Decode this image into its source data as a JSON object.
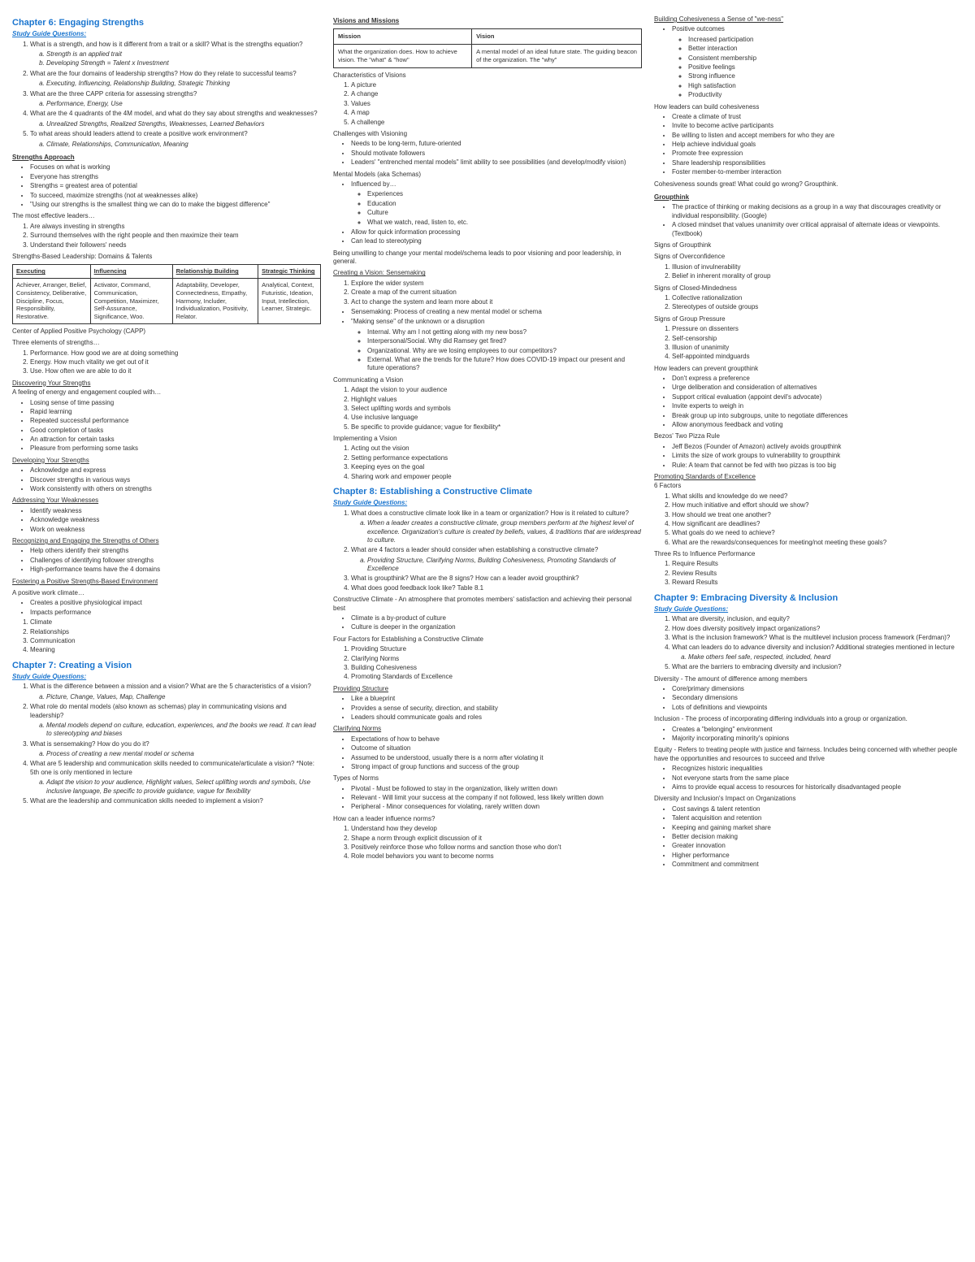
{
  "col1": {
    "ch6": {
      "title": "Chapter 6: Engaging Strengths",
      "sgq": "Study Guide Questions:",
      "q1": "What is a strength, and how is it different from a trait or a skill? What is the strengths equation?",
      "q1a": "Strength is an applied trait",
      "q1b": "Developing Strength = Talent x Investment",
      "q2": "What are the four domains of leadership strengths? How do they relate to successful teams?",
      "q2a": "Executing, Influencing, Relationship Building, Strategic Thinking",
      "q3": "What are the three CAPP criteria for assessing strengths?",
      "q3a": "Performance, Energy, Use",
      "q4": "What are the 4 quadrants of the 4M model, and what do they say about strengths and weaknesses?",
      "q4a": "Unrealized Strengths, Realized Strengths, Weaknesses, Learned Behaviors",
      "q5": "To what areas should leaders attend to create a positive work environment?",
      "q5a": "Climate, Relationships, Communication, Meaning",
      "sa_head": "Strengths Approach",
      "sa1": "Focuses on what is working",
      "sa2": "Everyone has strengths",
      "sa3": "Strengths = greatest area of potential",
      "sa4": "To succeed, maximize strengths (not at weaknesses alike)",
      "sa5": "\"Using our strengths is the smallest thing we can do to make the biggest difference\"",
      "mel_head": "The most effective leaders…",
      "mel1": "Are always investing in strengths",
      "mel2": "Surround themselves with the right people and then maximize their team",
      "mel3": "Understand their followers' needs",
      "tbl_head": "Strengths-Based Leadership: Domains & Talents",
      "th1": "Executing",
      "th2": "Influencing",
      "th3": "Relationship Building",
      "th4": "Strategic Thinking",
      "c1": "Achiever, Arranger, Belief, Consistency, Deliberative, Discipline, Focus, Responsibility, Restorative.",
      "c2": "Activator, Command, Communication, Competition, Maximizer, Self-Assurance, Significance, Woo.",
      "c3": "Adaptability, Developer, Connectedness, Empathy, Harmony, Includer, Individualization, Positivity, Relator.",
      "c4": "Analytical, Context, Futuristic, Ideation, Input, Intellection, Learner, Strategic.",
      "capp_note": "Center of Applied Positive Psychology (CAPP)",
      "te_head": "Three elements of strengths…",
      "te1": "Performance. How good we are at doing something",
      "te2": "Energy. How much vitality we get out of it",
      "te3": "Use. How often we are able to do it",
      "dys_head": "Discovering Your Strengths",
      "dys_sub": "A feeling of energy and engagement coupled with…",
      "dys1": "Losing sense of time passing",
      "dys2": "Rapid learning",
      "dys3": "Repeated successful performance",
      "dys4": "Good completion of tasks",
      "dys5": "An attraction for certain tasks",
      "dys6": "Pleasure from performing some tasks",
      "dev_head": "Developing Your Strengths",
      "dev1": "Acknowledge and express",
      "dev2": "Discover strengths in various ways",
      "dev3": "Work consistently with others on strengths",
      "aw_head": "Addressing Your Weaknesses",
      "aw1": "Identify weakness",
      "aw2": "Acknowledge weakness",
      "aw3": "Work on weakness",
      "reo_head": "Recognizing and Engaging the Strengths of Others",
      "reo1": "Help others identify their strengths",
      "reo2": "Challenges of identifying follower strengths",
      "reo3": "High-performance teams have the 4 domains",
      "fpe_head": "Fostering a Positive Strengths-Based Environment",
      "fpe_sub": "A positive work climate…",
      "fpe1": "Creates a positive physiological impact",
      "fpe2": "Impacts performance",
      "fpe_l1": "Climate",
      "fpe_l2": "Relationships",
      "fpe_l3": "Communication",
      "fpe_l4": "Meaning"
    },
    "ch7": {
      "title": "Chapter 7: Creating a Vision",
      "sgq": "Study Guide Questions:",
      "q1": "What is the difference between a mission and a vision? What are the 5 characteristics of a vision?",
      "q1a": "Picture, Change, Values, Map, Challenge",
      "q2": "What role do mental models (also known as schemas) play in communicating visions and leadership?",
      "q2a": "Mental models depend on culture, education, experiences, and the books we read. It can lead to stereotyping and biases",
      "q3": "What is sensemaking? How do you do it?",
      "q3a": "Process of creating a new mental model or schema",
      "q4": "What are 5 leadership and communication skills needed to communicate/articulate a vision? *Note: 5th one is only mentioned in lecture",
      "q4a": "Adapt the vision to your audience, Highlight values, Select uplifting words and symbols, Use inclusive language, Be specific to provide guidance, vague for flexibility",
      "q5": "What are the leadership and communication skills needed to implement a vision?"
    }
  },
  "col2": {
    "vm_head": "Visions and Missions",
    "th_mission": "Mission",
    "th_vision": "Vision",
    "td_mission": "What the organization does. How to achieve vision. The \"what\" & \"how\"",
    "td_vision": "A mental model of an ideal future state. The guiding beacon of the organization. The \"why\"",
    "cv_head": "Characteristics of Visions",
    "cv1": "A picture",
    "cv2": "A change",
    "cv3": "Values",
    "cv4": "A map",
    "cv5": "A challenge",
    "chv_head": "Challenges with Visioning",
    "chv1": "Needs to be long-term, future-oriented",
    "chv2": "Should motivate followers",
    "chv3": "Leaders' \"entrenched mental models\" limit ability to see possibilities (and develop/modify vision)",
    "mm_head": "Mental Models (aka Schemas)",
    "mm_sub": "Influenced by…",
    "mm1": "Experiences",
    "mm2": "Education",
    "mm3": "Culture",
    "mm4": "What we watch, read, listen to, etc.",
    "mm5": "Allow for quick information processing",
    "mm6": "Can lead to stereotyping",
    "mm_note": "Being unwilling to change your mental model/schema leads to poor visioning and poor leadership, in general.",
    "sense_head": "Creating a Vision: Sensemaking",
    "sm1": "Explore the wider system",
    "sm2": "Create a map of the current situation",
    "sm3": "Act to change the system and learn more about it",
    "sm_note": "Sensemaking: Process of creating a new mental model or schema",
    "mbs": "\"Making sense\" of the unknown or a disruption",
    "mbs1": "Internal. Why am I not getting along with my new boss?",
    "mbs2": "Interpersonal/Social. Why did Ramsey get fired?",
    "mbs3": "Organizational. Why are we losing employees to our competitors?",
    "mbs4": "External. What are the trends for the future? How does COVID-19 impact our present and future operations?",
    "comv_head": "Communicating a Vision",
    "comv1": "Adapt the vision to your audience",
    "comv2": "Highlight values",
    "comv3": "Select uplifting words and symbols",
    "comv4": "Use inclusive language",
    "comv5": "Be specific to provide guidance; vague for flexibility*",
    "impv_head": "Implementing a Vision",
    "impv1": "Acting out the vision",
    "impv2": "Setting performance expectations",
    "impv3": "Keeping eyes on the goal",
    "impv4": "Sharing work and empower people",
    "ch8": {
      "title": "Chapter 8: Establishing a Constructive Climate",
      "sgq": "Study Guide Questions:",
      "q1": "What does a constructive climate look like in a team or organization? How is it related to culture?",
      "q1a": "When a leader creates a constructive climate, group members perform at the highest level of excellence. Organization's culture is created by beliefs, values, & traditions that are widespread to culture.",
      "q2": "What are 4 factors a leader should consider when establishing a constructive climate?",
      "q2a": "Providing Structure, Clarifying Norms, Building Cohesiveness, Promoting Standards of Excellence",
      "q3": "What is groupthink? What are the 8 signs? How can a leader avoid groupthink?",
      "q4": "What does good feedback look like? Table 8.1",
      "cc_note": "Constructive Climate - An atmosphere that promotes members' satisfaction and achieving their personal best",
      "cc1": "Climate is a by-product of culture",
      "cc2": "Culture is deeper in the organization",
      "ff_head": "Four Factors for Establishing a Constructive Climate",
      "ff1": "Providing Structure",
      "ff2": "Clarifying Norms",
      "ff3": "Building Cohesiveness",
      "ff4": "Promoting Standards of Excellence",
      "ps_head": "Providing Structure",
      "ps1": "Like a blueprint",
      "ps2": "Provides a sense of security, direction, and stability",
      "ps3": "Leaders should communicate goals and roles",
      "cn_head": "Clarifying Norms",
      "cn1": "Expectations of how to behave",
      "cn2": "Outcome of situation",
      "cn3": "Assumed to be understood, usually there is a norm after violating it",
      "cn4": "Strong impact of group functions and success of the group",
      "tn_head": "Types of Norms",
      "tn1": "Pivotal - Must be followed to stay in the organization, likely written down",
      "tn2": "Relevant - Will limit your success at the company if not followed, less likely written down",
      "tn3": "Peripheral - Minor consequences for violating, rarely written down",
      "hln_head": "How can a leader influence norms?",
      "hln1": "Understand how they develop",
      "hln2": "Shape a norm through explicit discussion of it",
      "hln3": "Positively reinforce those who follow norms and sanction those who don't",
      "hln4": "Role model behaviors you want to become norms"
    }
  },
  "col3": {
    "bc_head": "Building Cohesiveness a Sense of \"we-ness\"",
    "bc_sub": "Positive outcomes",
    "bc1": "Increased participation",
    "bc2": "Better interaction",
    "bc3": "Consistent membership",
    "bc4": "Positive feelings",
    "bc5": "Strong influence",
    "bc6": "High satisfaction",
    "bc7": "Productivity",
    "hbc_head": "How leaders can build cohesiveness",
    "hbc1": "Create a climate of trust",
    "hbc2": "Invite to become active participants",
    "hbc3": "Be willing to listen and accept members for who they are",
    "hbc4": "Help achieve individual goals",
    "hbc5": "Promote free expression",
    "hbc6": "Share leadership responsibilities",
    "hbc7": "Foster member-to-member interaction",
    "gt_note": "Cohesiveness sounds great! What could go wrong? Groupthink.",
    "gt_head": "Groupthink",
    "gt1": "The practice of thinking or making decisions as a group in a way that discourages creativity or individual responsibility. (Google)",
    "gt2": "A closed mindset that values unanimity over critical appraisal of alternate ideas or viewpoints. (Textbook)",
    "sg_head": "Signs of Groupthink",
    "so_head": "Signs of Overconfidence",
    "so1": "Illusion of invulnerability",
    "so2": "Belief in inherent morality of group",
    "scm_head": "Signs of Closed-Mindedness",
    "scm1": "Collective rationalization",
    "scm2": "Stereotypes of outside groups",
    "sgp_head": "Signs of Group Pressure",
    "sgp1": "Pressure on dissenters",
    "sgp2": "Self-censorship",
    "sgp3": "Illusion of unanimity",
    "sgp4": "Self-appointed mindguards",
    "hpg_head": "How leaders can prevent groupthink",
    "hpg1": "Don't express a preference",
    "hpg2": "Urge deliberation and consideration of alternatives",
    "hpg3": "Support critical evaluation (appoint devil's advocate)",
    "hpg4": "Invite experts to weigh in",
    "hpg5": "Break group up into subgroups, unite to negotiate differences",
    "hpg6": "Allow anonymous feedback and voting",
    "tpz_head": "Bezos' Two Pizza Rule",
    "tpz1": "Jeff Bezos (Founder of Amazon) actively avoids groupthink",
    "tpz2": "Limits the size of work groups to vulnerability to groupthink",
    "tpz3": "Rule: A team that cannot be fed with two pizzas is too big",
    "pse_head": "Promoting Standards of Excellence",
    "pse_sub": "6 Factors",
    "pse1": "What skills and knowledge do we need?",
    "pse2": "How much initiative and effort should we show?",
    "pse3": "How should we treat one another?",
    "pse4": "How significant are deadlines?",
    "pse5": "What goals do we need to achieve?",
    "pse6": "What are the rewards/consequences for meeting/not meeting these goals?",
    "trp_head": "Three Rs to Influence Performance",
    "trp1": "Require Results",
    "trp2": "Review Results",
    "trp3": "Reward Results",
    "ch9": {
      "title": "Chapter 9: Embracing Diversity & Inclusion",
      "sgq": "Study Guide Questions:",
      "q1": "What are diversity, inclusion, and equity?",
      "q2": "How does diversity positively impact organizations?",
      "q3": "What is the inclusion framework? What is the multilevel inclusion process framework (Ferdman)?",
      "q4": "What can leaders do to advance diversity and inclusion? Additional strategies mentioned in lecture",
      "q4a": "Make others feel safe, respected, included, heard",
      "q5": "What are the barriers to embracing diversity and inclusion?",
      "div_head": "Diversity - The amount of difference among members",
      "div1": "Core/primary dimensions",
      "div2": "Secondary dimensions",
      "div3": "Lots of definitions and viewpoints",
      "inc_head": "Inclusion - The process of incorporating differing individuals into a group or organization.",
      "inc1": "Creates a \"belonging\" environment",
      "inc2": "Majority incorporating minority's opinions",
      "eq_head": "Equity - Refers to treating people with justice and fairness. Includes being concerned with whether people have the opportunities and resources to succeed and thrive",
      "eq1": "Recognizes historic inequalities",
      "eq2": "Not everyone starts from the same place",
      "eq3": "Aims to provide equal access to resources for historically disadvantaged people",
      "dio_head": "Diversity and Inclusion's Impact on Organizations",
      "dio1": "Talent acquisition and retention",
      "dio2": "Keeping and gaining market share",
      "dio3": "Better decision making",
      "dio4": "Greater innovation",
      "dio5": "Higher performance",
      "dio6": "Commitment and commitment",
      "csr": "Cost savings & talent retention"
    }
  }
}
